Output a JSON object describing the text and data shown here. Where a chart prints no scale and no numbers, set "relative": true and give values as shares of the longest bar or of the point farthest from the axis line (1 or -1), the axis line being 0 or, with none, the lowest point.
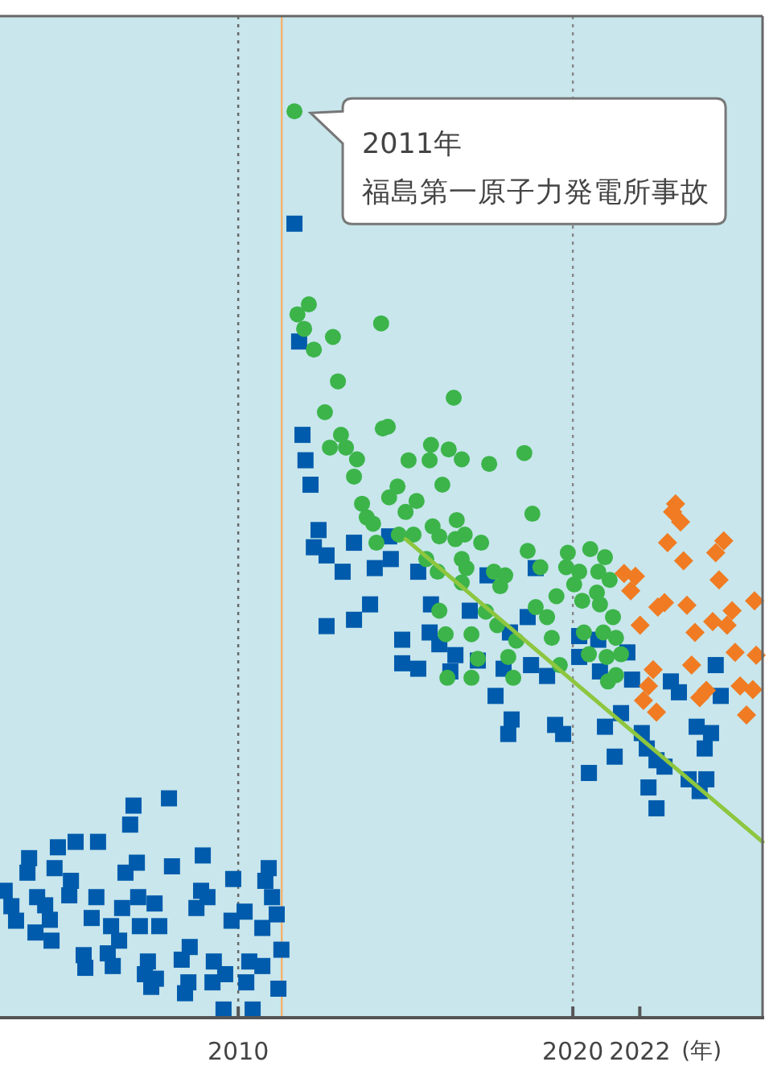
{
  "chart_data": {
    "type": "scatter",
    "relative": true,
    "xlim": [
      2002.88,
      2025.67
    ],
    "xticks": [
      2010,
      2020,
      2022
    ],
    "xlabel": "(年)",
    "series": [
      {
        "color": "#005bac",
        "marker": "square",
        "x": [
          2007.93,
          2006.87,
          2006.77,
          2005.14,
          2005.81,
          2004.61,
          2003.75,
          2008.94,
          2006.97,
          2008.02,
          2006.63,
          2004.51,
          2003.7,
          2005.0,
          2003.02,
          2010.91,
          2009.85,
          2010.81,
          2008.89,
          2009.08,
          2005.76,
          2007.01,
          2004.95,
          2003.99,
          2003.22,
          2004.23,
          2007.5,
          2006.53,
          2008.75,
          2010.19,
          2011.01,
          2011.15,
          2005.62,
          2003.36,
          2004.37,
          2006.2,
          2007.06,
          2007.64,
          2009.8,
          2010.72,
          2003.94,
          2006.44,
          2004.42,
          2011.29,
          2005.38,
          2006.1,
          2008.55,
          2008.31,
          2007.3,
          2005.43,
          2006.25,
          2009.27,
          2010.33,
          2010.72,
          2007.21,
          2007.54,
          2009.61,
          2009.23,
          2010.24,
          2008.51,
          2007.4,
          2008.41,
          2011.2,
          2009.56,
          2010.43,
          2011.68,
          2011.82,
          2011.92,
          2012.01,
          2012.16,
          2012.4,
          2012.26,
          2012.64,
          2013.12,
          2013.46,
          2013.94,
          2013.46,
          2012.64,
          2014.08,
          2014.51,
          2014.56,
          2015.38,
          2015.76,
          2016.92,
          2017.45,
          2018.65,
          2018.89,
          2014.9,
          2015.72,
          2016.49,
          2016.34,
          2015.38,
          2014.9,
          2017.16,
          2017.93,
          2018.75,
          2019.23,
          2017.69,
          2020.19,
          2020.19,
          2020.76,
          2021.63,
          2020.81,
          2021.77,
          2022.93,
          2024.27,
          2023.17,
          2024.42,
          2018.12,
          2016.01,
          2018.17,
          2018.07,
          2019.47,
          2019.71,
          2020.96,
          2021.44,
          2022.06,
          2022.21,
          2022.5,
          2022.74,
          2021.25,
          2020.48,
          2022.26,
          2022.5,
          2023.7,
          2024.13,
          2023.94,
          2023.46,
          2023.99,
          2023.79
        ],
        "values": [
          0.242,
          0.234,
          0.213,
          0.194,
          0.194,
          0.188,
          0.176,
          0.179,
          0.171,
          0.167,
          0.16,
          0.165,
          0.16,
          0.151,
          0.14,
          0.165,
          0.153,
          0.151,
          0.14,
          0.133,
          0.133,
          0.133,
          0.135,
          0.133,
          0.123,
          0.124,
          0.126,
          0.121,
          0.121,
          0.117,
          0.133,
          0.114,
          0.11,
          0.107,
          0.108,
          0.101,
          0.101,
          0.101,
          0.107,
          0.099,
          0.094,
          0.085,
          0.085,
          0.075,
          0.069,
          0.071,
          0.078,
          0.064,
          0.062,
          0.055,
          0.057,
          0.062,
          0.062,
          0.057,
          0.048,
          0.043,
          0.048,
          0.039,
          0.039,
          0.039,
          0.034,
          0.027,
          0.032,
          0.009,
          0.009,
          0.876,
          0.746,
          0.643,
          0.615,
          0.588,
          0.538,
          0.519,
          0.51,
          0.492,
          0.524,
          0.456,
          0.439,
          0.432,
          0.496,
          0.531,
          0.506,
          0.492,
          0.456,
          0.449,
          0.488,
          0.442,
          0.496,
          0.417,
          0.425,
          0.4,
          0.382,
          0.385,
          0.391,
          0.394,
          0.385,
          0.389,
          0.377,
          0.355,
          0.421,
          0.398,
          0.417,
          0.403,
          0.382,
          0.373,
          0.371,
          0.389,
          0.359,
          0.355,
          0.425,
          0.412,
          0.329,
          0.313,
          0.323,
          0.313,
          0.321,
          0.336,
          0.314,
          0.297,
          0.284,
          0.277,
          0.288,
          0.27,
          0.254,
          0.231,
          0.321,
          0.314,
          0.297,
          0.263,
          0.263,
          0.25
        ]
      },
      {
        "color": "#3cb44a",
        "marker": "circle",
        "x": [
          2011.68,
          2012.11,
          2011.77,
          2011.97,
          2012.83,
          2014.27,
          2012.26,
          2012.98,
          2012.59,
          2013.07,
          2012.74,
          2013.22,
          2013.55,
          2013.46,
          2014.32,
          2013.7,
          2013.84,
          2014.03,
          2014.13,
          2014.51,
          2016.44,
          2014.47,
          2015.76,
          2016.29,
          2015.09,
          2015.72,
          2016.68,
          2017.5,
          2018.55,
          2016.1,
          2014.76,
          2015.33,
          2015.0,
          2018.79,
          2016.53,
          2015.81,
          2014.8,
          2015.24,
          2016.01,
          2016.49,
          2016.77,
          2017.26,
          2015.62,
          2016.68,
          2016.82,
          2015.96,
          2017.64,
          2017.98,
          2017.83,
          2016.68,
          2018.65,
          2019.03,
          2019.85,
          2020.52,
          2020.96,
          2019.8,
          2020.19,
          2020.76,
          2021.1,
          2020.04,
          2020.28,
          2019.51,
          2020.72,
          2020.81,
          2021.2,
          2018.89,
          2019.23,
          2016.01,
          2017.4,
          2017.74,
          2019.37,
          2020.33,
          2020.91,
          2021.29,
          2016.2,
          2016.97,
          2018.31,
          2020.48,
          2021.01,
          2021.44,
          2017.16,
          2018.07,
          2019.61,
          2016.25,
          2016.97,
          2018.22,
          2021.05,
          2021.29
        ],
        "values": [
          1.0,
          0.787,
          0.776,
          0.76,
          0.751,
          0.766,
          0.737,
          0.702,
          0.668,
          0.643,
          0.629,
          0.629,
          0.616,
          0.597,
          0.65,
          0.567,
          0.552,
          0.545,
          0.524,
          0.574,
          0.684,
          0.652,
          0.632,
          0.627,
          0.615,
          0.615,
          0.616,
          0.611,
          0.623,
          0.588,
          0.586,
          0.57,
          0.558,
          0.556,
          0.549,
          0.542,
          0.533,
          0.533,
          0.531,
          0.528,
          0.533,
          0.524,
          0.506,
          0.506,
          0.496,
          0.492,
          0.492,
          0.488,
          0.476,
          0.48,
          0.515,
          0.497,
          0.513,
          0.517,
          0.508,
          0.497,
          0.492,
          0.492,
          0.483,
          0.478,
          0.46,
          0.465,
          0.469,
          0.456,
          0.442,
          0.453,
          0.442,
          0.449,
          0.448,
          0.433,
          0.419,
          0.425,
          0.425,
          0.419,
          0.423,
          0.423,
          0.416,
          0.401,
          0.398,
          0.401,
          0.396,
          0.398,
          0.389,
          0.375,
          0.375,
          0.375,
          0.371,
          0.378
        ]
      },
      {
        "color": "#f07b22",
        "marker": "diamond",
        "x": [
          2023.07,
          2022.98,
          2023.22,
          2022.83,
          2024.51,
          2024.27,
          2023.31,
          2021.53,
          2021.87,
          2021.73,
          2024.37,
          2022.74,
          2022.54,
          2023.41,
          2024.76,
          2025.43,
          2022.01,
          2024.18,
          2024.61,
          2023.65,
          2024.85,
          2023.55,
          2022.4,
          2022.26,
          2023.99,
          2023.79,
          2025.0,
          2025.38,
          2025.48,
          2022.11,
          2022.5,
          2025.19
        ],
        "values": [
          0.567,
          0.558,
          0.547,
          0.524,
          0.526,
          0.513,
          0.504,
          0.49,
          0.487,
          0.471,
          0.483,
          0.458,
          0.453,
          0.455,
          0.449,
          0.46,
          0.433,
          0.437,
          0.433,
          0.425,
          0.403,
          0.389,
          0.384,
          0.366,
          0.361,
          0.353,
          0.366,
          0.362,
          0.4,
          0.35,
          0.337,
          0.334
        ]
      },
      {
        "type": "line",
        "color": "#8dc63f",
        "marker": "none",
        "x": [
          2015.0,
          2025.67
        ],
        "values": [
          0.528,
          0.194
        ]
      }
    ],
    "ref_lines": [
      {
        "axis": "x",
        "value": 2010,
        "color": "#666666",
        "line_style": "dotted"
      },
      {
        "axis": "x",
        "value": 2020,
        "color": "#888888",
        "line_style": "dotted"
      },
      {
        "axis": "x",
        "value": 2011.3,
        "color": "#f6b26b",
        "line_style": "solid"
      }
    ],
    "annotations": [
      {
        "text": "2011年",
        "x": 2011.68,
        "y": 1.0
      },
      "福島第一原子力発電所事故"
    ]
  }
}
